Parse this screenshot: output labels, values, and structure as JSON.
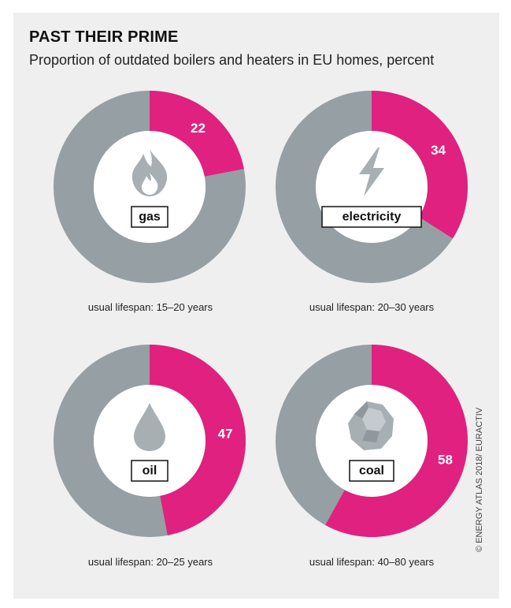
{
  "header": {
    "title": "PAST THEIR PRIME",
    "subtitle": "Proportion of outdated boilers and heaters in EU homes, percent"
  },
  "credit": "© ENERGY ATLAS 2018/ EURACTIV",
  "colors": {
    "outdated": "#e0217f",
    "remainder": "#969fa4",
    "icon": "#a7afb3",
    "panel": "#efefef"
  },
  "chart_data": {
    "type": "pie",
    "title": "PAST THEIR PRIME",
    "subtitle": "Proportion of outdated boilers and heaters in EU homes, percent",
    "charts": [
      {
        "category": "gas",
        "value": 22,
        "lifespan": "usual lifespan: 15–20 years",
        "icon": "flame-icon"
      },
      {
        "category": "electricity",
        "value": 34,
        "lifespan": "usual lifespan: 20–30 years",
        "icon": "lightning-icon"
      },
      {
        "category": "oil",
        "value": 47,
        "lifespan": "usual lifespan: 20–25 years",
        "icon": "drop-icon"
      },
      {
        "category": "coal",
        "value": 58,
        "lifespan": "usual lifespan: 40–80 years",
        "icon": "coal-lump-icon"
      }
    ]
  }
}
